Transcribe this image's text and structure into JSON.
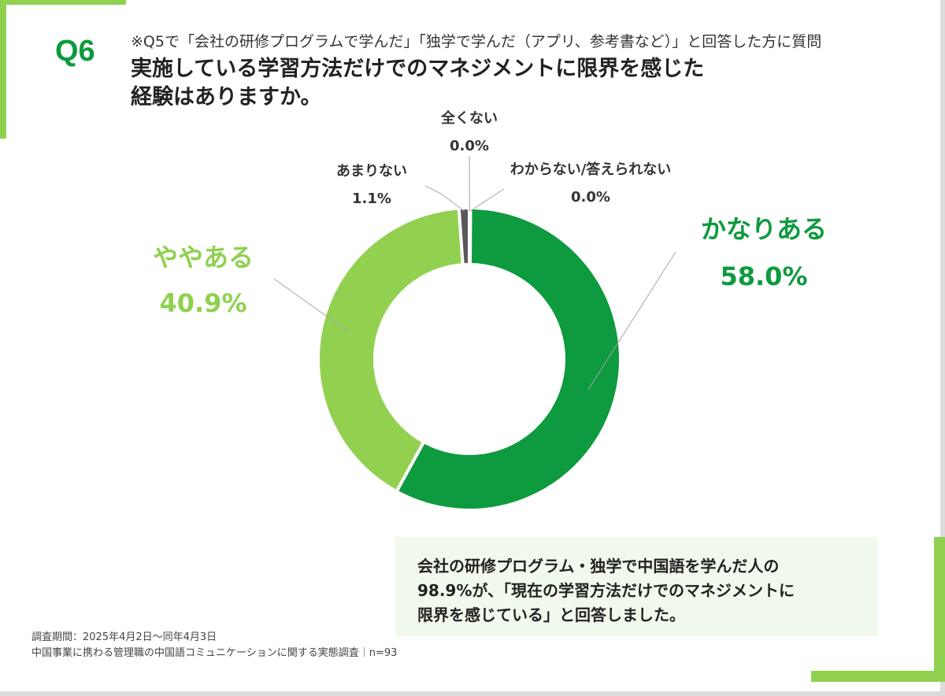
{
  "question": {
    "number": "Q6",
    "condition": "※Q5で「会社の研修プログラムで学んだ」「独学で学んだ（アプリ、参考書など）」と回答した方に質問",
    "title_line1": "実施している学習方法だけでのマネジメントに限界を感じた",
    "title_line2": "経験はありますか。"
  },
  "chart_data": {
    "type": "pie",
    "donut": true,
    "start": "top",
    "direction": "clockwise",
    "slices": [
      {
        "label": "かなりある",
        "value": 58.0,
        "value_label": "58.0%",
        "color": "#0e9a3e"
      },
      {
        "label": "ややある",
        "value": 40.9,
        "value_label": "40.9%",
        "color": "#92d050"
      },
      {
        "label": "あまりない",
        "value": 1.1,
        "value_label": "1.1%",
        "color": "#595959"
      },
      {
        "label": "全くない",
        "value": 0.0,
        "value_label": "0.0%",
        "color": "#a6a6a6"
      },
      {
        "label": "わからない/答えられない",
        "value": 0.0,
        "value_label": "0.0%",
        "color": "#d9d9d9"
      }
    ]
  },
  "note": {
    "line1": "会社の研修プログラム・独学で中国語を学んだ人の",
    "line2": "98.9%が、「現在の学習方法だけでのマネジメントに",
    "line3": "限界を感じている」と回答しました。"
  },
  "footer": {
    "period": "調査期間：2025年4月2日～同年4月3日",
    "survey": "中国事業に携わる管理職の中国語コミュニケーションに関する実態調査｜n=93"
  }
}
